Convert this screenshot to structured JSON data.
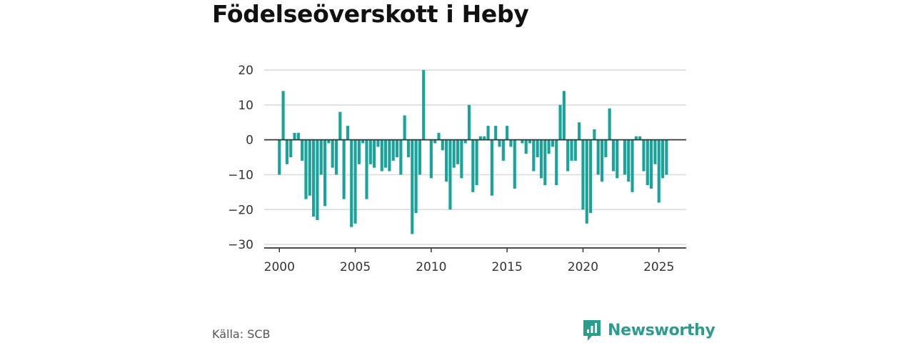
{
  "title": "Födelseöverskott i Heby",
  "source": "Källa: SCB",
  "brand": {
    "name": "Newsworthy",
    "icon": "newsworthy-logo-icon",
    "color": "#2a9d8f"
  },
  "colors": {
    "bar": "#1aa39a",
    "grid": "#d9d9d9",
    "zero_line": "#333333"
  },
  "chart_data": {
    "type": "bar",
    "title": "Födelseöverskott i Heby",
    "xlabel": "",
    "ylabel": "",
    "xlim": [
      1999,
      2026.8
    ],
    "ylim": [
      -31,
      20
    ],
    "yticks": [
      20,
      10,
      0,
      -10,
      -20,
      -30
    ],
    "ytick_labels": [
      "20",
      "10",
      "0",
      "−10",
      "−20",
      "−30"
    ],
    "xticks": [
      2000,
      2005,
      2010,
      2015,
      2020,
      2025
    ],
    "xtick_labels": [
      "2000",
      "2005",
      "2010",
      "2015",
      "2020",
      "2025"
    ],
    "grid": true,
    "series": [
      {
        "x_start": 2000,
        "x_step": 0.25,
        "values": [
          -10,
          14,
          -7,
          -5,
          2,
          2,
          -6,
          -17,
          -16,
          -22,
          -23,
          -10,
          -19,
          -1,
          -8,
          -10,
          8,
          -17,
          4,
          -25,
          -24,
          -7,
          -1,
          -17,
          -7,
          -8,
          -2,
          -9,
          -8,
          -9,
          -6,
          -5,
          -10,
          7,
          -5,
          -27,
          -21,
          -10,
          20,
          0,
          -11,
          -1,
          2,
          -3,
          -12,
          -20,
          -8,
          -7,
          -11,
          -1,
          10,
          -15,
          -13,
          1,
          1,
          4,
          -16,
          4,
          -2,
          -6,
          4,
          -2,
          -14,
          0,
          -1,
          -4,
          -1,
          -9,
          -5,
          -11,
          -13,
          -4,
          -2,
          -13,
          10,
          14,
          -9,
          -6,
          -6,
          5,
          -20,
          -24,
          -21,
          3,
          -10,
          -12,
          -5,
          9,
          -9,
          -11,
          0,
          -10,
          -12,
          -15,
          1,
          1,
          -9,
          -13,
          -14,
          -7,
          -18,
          -11,
          -10
        ]
      }
    ]
  }
}
